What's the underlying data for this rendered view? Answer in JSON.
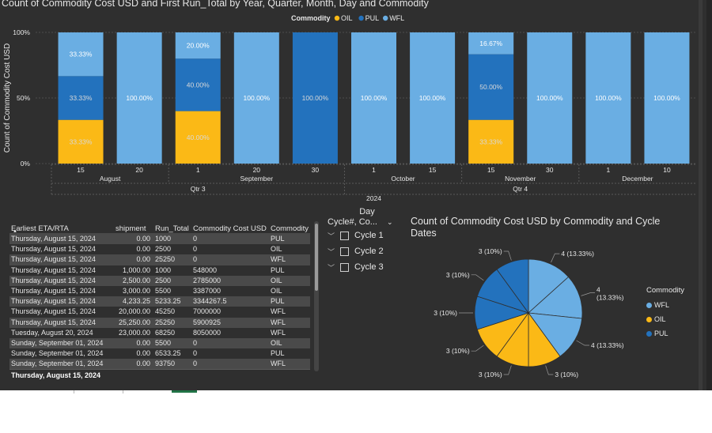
{
  "colors": {
    "OIL": "#fbb916",
    "PUL": "#2372bd",
    "WFL": "#6aaee3",
    "text": "#e6e6e6",
    "background": "#2f2f2f",
    "taskbar_accent": "#217346"
  },
  "chart_data": [
    {
      "type": "bar",
      "stacked": "100%",
      "title": "Count of Commodity Cost USD and First Run_Total by Year, Quarter, Month, Day and Commodity",
      "ylabel": "Count of Commodity Cost USD",
      "y_ticks": [
        "100%",
        "50%",
        "0%"
      ],
      "ylim": [
        0,
        100
      ],
      "legend": {
        "title": "Commodity",
        "position": "top",
        "items": [
          "OIL",
          "PUL",
          "WFL"
        ]
      },
      "categories": [
        "15",
        "20",
        "1",
        "20",
        "30",
        "1",
        "15",
        "15",
        "30",
        "1",
        "10"
      ],
      "series": [
        {
          "name": "OIL",
          "values": [
            33.33,
            0,
            40.0,
            0,
            0,
            0,
            0,
            33.33,
            0,
            0,
            0
          ]
        },
        {
          "name": "PUL",
          "values": [
            33.33,
            0,
            40.0,
            0,
            100.0,
            0,
            0,
            50.0,
            0,
            0,
            0
          ]
        },
        {
          "name": "WFL",
          "values": [
            33.33,
            100.0,
            20.0,
            100.0,
            0,
            100.0,
            100.0,
            16.67,
            100.0,
            100.0,
            100.0
          ]
        }
      ],
      "data_labels": [
        [
          "33.33%",
          "33.33%",
          "33.33%"
        ],
        [
          "",
          "",
          "100.00%"
        ],
        [
          "40.00%",
          "40.00%",
          "20.00%"
        ],
        [
          "",
          "",
          "100.00%"
        ],
        [
          "",
          "100.00%",
          ""
        ],
        [
          "",
          "",
          "100.00%"
        ],
        [
          "",
          "",
          "100.00%"
        ],
        [
          "33.33%",
          "50.00%",
          "16.67%"
        ],
        [
          "",
          "",
          "100.00%"
        ],
        [
          "",
          "",
          "100.00%"
        ],
        [
          "",
          "",
          "100.00%"
        ]
      ],
      "months": [
        {
          "label": "August",
          "start": 0,
          "end": 1
        },
        {
          "label": "September",
          "start": 2,
          "end": 4
        },
        {
          "label": "October",
          "start": 5,
          "end": 6
        },
        {
          "label": "November",
          "start": 7,
          "end": 8
        },
        {
          "label": "December",
          "start": 9,
          "end": 10
        }
      ],
      "quarters": [
        {
          "label": "Qtr 3",
          "start": 0,
          "end": 4
        },
        {
          "label": "Qtr 4",
          "start": 5,
          "end": 10
        }
      ],
      "year": "2024",
      "day_label": "Day"
    },
    {
      "type": "pie",
      "title_line1": "Count of Commodity Cost USD by Commodity and Cycle",
      "title_line2": "Dates",
      "legend": {
        "title": "Commodity",
        "items": [
          {
            "name": "WFL",
            "color": "#6aaee3"
          },
          {
            "name": "OIL",
            "color": "#fbb916"
          },
          {
            "name": "PUL",
            "color": "#2372bd"
          }
        ]
      },
      "slices": [
        {
          "commodity": "WFL",
          "value": 4,
          "label": "4 (13.33%)"
        },
        {
          "commodity": "WFL",
          "value": 4,
          "label": "4 (13.33%)"
        },
        {
          "commodity": "WFL",
          "value": 4,
          "label": "4 (13.33%)"
        },
        {
          "commodity": "OIL",
          "value": 3,
          "label": "3 (10%)"
        },
        {
          "commodity": "OIL",
          "value": 3,
          "label": "3 (10%)"
        },
        {
          "commodity": "OIL",
          "value": 3,
          "label": "3 (10%)"
        },
        {
          "commodity": "PUL",
          "value": 3,
          "label": "3 (10%)"
        },
        {
          "commodity": "PUL",
          "value": 3,
          "label": "3 (10%)"
        },
        {
          "commodity": "PUL",
          "value": 3,
          "label": "3 (10%)"
        }
      ]
    }
  ],
  "table": {
    "headers": [
      "Earliest ETA/RTA",
      "shipment",
      "Run_Total",
      "Commodity Cost USD",
      "Commodity"
    ],
    "rows": [
      [
        "Thursday, August 15, 2024",
        "0.00",
        "1000",
        "0",
        "PUL"
      ],
      [
        "Thursday, August 15, 2024",
        "0.00",
        "2500",
        "0",
        "OIL"
      ],
      [
        "Thursday, August 15, 2024",
        "0.00",
        "25250",
        "0",
        "WFL"
      ],
      [
        "Thursday, August 15, 2024",
        "1,000.00",
        "1000",
        "548000",
        "PUL"
      ],
      [
        "Thursday, August 15, 2024",
        "2,500.00",
        "2500",
        "2785000",
        "OIL"
      ],
      [
        "Thursday, August 15, 2024",
        "3,000.00",
        "5500",
        "3387000",
        "OIL"
      ],
      [
        "Thursday, August 15, 2024",
        "4,233.25",
        "5233.25",
        "3344267.5",
        "PUL"
      ],
      [
        "Thursday, August 15, 2024",
        "20,000.00",
        "45250",
        "7000000",
        "WFL"
      ],
      [
        "Thursday, August 15, 2024",
        "25,250.00",
        "25250",
        "5900925",
        "WFL"
      ],
      [
        "Tuesday, August 20, 2024",
        "23,000.00",
        "68250",
        "8050000",
        "WFL"
      ],
      [
        "Sunday, September 01, 2024",
        "0.00",
        "5500",
        "0",
        "OIL"
      ],
      [
        "Sunday, September 01, 2024",
        "0.00",
        "6533.25",
        "0",
        "PUL"
      ],
      [
        "Sunday, September 01, 2024",
        "0.00",
        "93750",
        "0",
        "WFL"
      ]
    ],
    "footer": "Thursday, August 15, 2024"
  },
  "slicer": {
    "title": "Day",
    "header": "Cycle#, Co...",
    "items": [
      "Cycle 1",
      "Cycle 2",
      "Cycle 3"
    ]
  }
}
